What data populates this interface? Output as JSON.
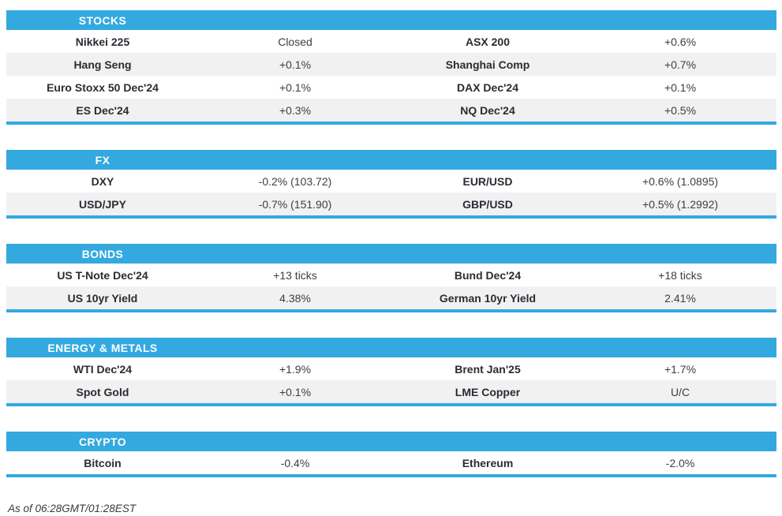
{
  "colors": {
    "accent": "#33a9e0",
    "stripe": "#f1f1f2",
    "header_text": "#ffffff",
    "label_text": "#2b2b33",
    "value_text": "#3d3d44"
  },
  "sections": [
    {
      "id": "stocks",
      "title": "STOCKS",
      "rows": [
        [
          "Nikkei 225",
          "Closed",
          "ASX 200",
          "+0.6%"
        ],
        [
          "Hang Seng",
          "+0.1%",
          "Shanghai Comp",
          "+0.7%"
        ],
        [
          "Euro Stoxx 50 Dec'24",
          "+0.1%",
          "DAX Dec'24",
          "+0.1%"
        ],
        [
          "ES Dec'24",
          "+0.3%",
          "NQ Dec'24",
          "+0.5%"
        ]
      ]
    },
    {
      "id": "fx",
      "title": "FX",
      "rows": [
        [
          "DXY",
          "-0.2% (103.72)",
          "EUR/USD",
          "+0.6% (1.0895)"
        ],
        [
          "USD/JPY",
          "-0.7% (151.90)",
          "GBP/USD",
          "+0.5% (1.2992)"
        ]
      ]
    },
    {
      "id": "bonds",
      "title": "BONDS",
      "rows": [
        [
          "US T-Note Dec'24",
          "+13 ticks",
          "Bund Dec'24",
          "+18 ticks"
        ],
        [
          "US 10yr Yield",
          "4.38%",
          "German 10yr Yield",
          "2.41%"
        ]
      ]
    },
    {
      "id": "energy-metals",
      "title": "ENERGY & METALS",
      "rows": [
        [
          "WTI Dec'24",
          "+1.9%",
          "Brent Jan'25",
          "+1.7%"
        ],
        [
          "Spot Gold",
          "+0.1%",
          "LME Copper",
          "U/C"
        ]
      ]
    },
    {
      "id": "crypto",
      "title": "CRYPTO",
      "rows": [
        [
          "Bitcoin",
          "-0.4%",
          "Ethereum",
          "-2.0%"
        ]
      ]
    }
  ],
  "footer": {
    "timestamp": "As of 06:28GMT/01:28EST"
  }
}
